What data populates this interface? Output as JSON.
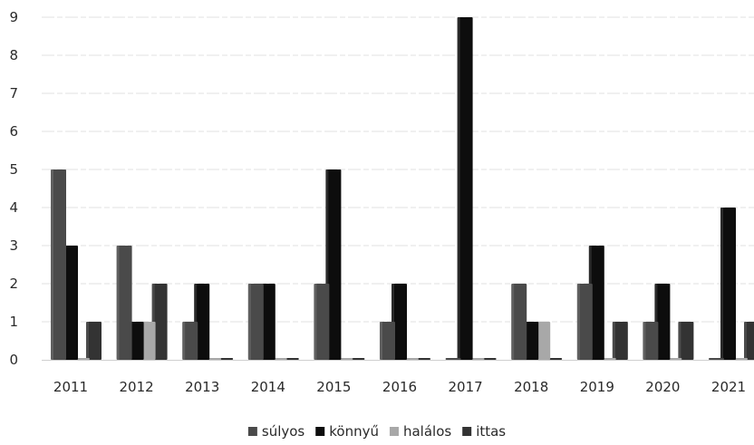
{
  "chart_data": {
    "type": "bar",
    "title": "",
    "xlabel": "",
    "ylabel": "",
    "ylim": [
      0,
      9
    ],
    "yticks": [
      0,
      1,
      2,
      3,
      4,
      5,
      6,
      7,
      8,
      9
    ],
    "grid": true,
    "legend_position": "bottom",
    "categories": [
      "2011",
      "2012",
      "2013",
      "2014",
      "2015",
      "2016",
      "2017",
      "2018",
      "2019",
      "2020",
      "2021"
    ],
    "series": [
      {
        "name": "súlyos",
        "color": "#4a4a4a",
        "values": [
          5,
          3,
          1,
          2,
          2,
          1,
          0,
          2,
          2,
          1,
          0
        ]
      },
      {
        "name": "könnyű",
        "color": "#0d0d0d",
        "values": [
          3,
          1,
          2,
          2,
          5,
          2,
          9,
          1,
          3,
          2,
          4
        ]
      },
      {
        "name": "halálos",
        "color": "#a8a8a8",
        "values": [
          0,
          1,
          0,
          0,
          0,
          0,
          0,
          1,
          0,
          0,
          0
        ]
      },
      {
        "name": "ittas",
        "color": "#333333",
        "values": [
          1,
          2,
          0,
          0,
          0,
          0,
          0,
          0,
          1,
          1,
          1
        ]
      }
    ]
  }
}
